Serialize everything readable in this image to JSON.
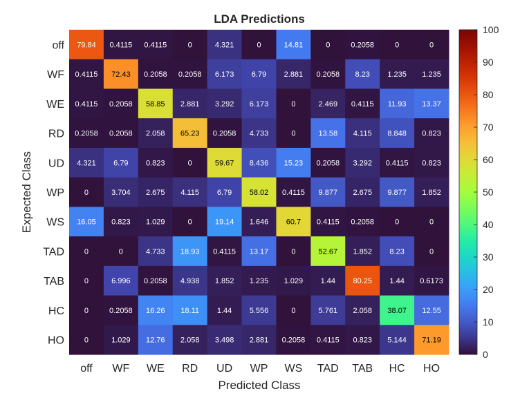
{
  "chart_data": {
    "type": "heatmap",
    "title": "LDA Predictions",
    "xlabel": "Predicted Class",
    "ylabel": "Expected Class",
    "x_categories": [
      "off",
      "WF",
      "WE",
      "RD",
      "UD",
      "WP",
      "WS",
      "TAD",
      "TAB",
      "HC",
      "HO"
    ],
    "y_categories": [
      "off",
      "WF",
      "WE",
      "RD",
      "UD",
      "WP",
      "WS",
      "TAD",
      "TAB",
      "HC",
      "HO"
    ],
    "values": [
      [
        "79.84",
        "0.4115",
        "0.4115",
        "0",
        "4.321",
        "0",
        "14.81",
        "0",
        "0.2058",
        "0",
        "0"
      ],
      [
        "0.4115",
        "72.43",
        "0.2058",
        "0.2058",
        "6.173",
        "6.79",
        "2.881",
        "0.2058",
        "8.23",
        "1.235",
        "1.235"
      ],
      [
        "0.4115",
        "0.2058",
        "58.85",
        "2.881",
        "3.292",
        "6.173",
        "0",
        "2.469",
        "0.4115",
        "11.93",
        "13.37"
      ],
      [
        "0.2058",
        "0.2058",
        "2.058",
        "65.23",
        "0.2058",
        "4.733",
        "0",
        "13.58",
        "4.115",
        "8.848",
        "0.823"
      ],
      [
        "4.321",
        "6.79",
        "0.823",
        "0",
        "59.67",
        "8.436",
        "15.23",
        "0.2058",
        "3.292",
        "0.4115",
        "0.823"
      ],
      [
        "0",
        "3.704",
        "2.675",
        "4.115",
        "6.79",
        "58.02",
        "0.4115",
        "9.877",
        "2.675",
        "9.877",
        "1.852"
      ],
      [
        "16.05",
        "0.823",
        "1.029",
        "0",
        "19.14",
        "1.646",
        "60.7",
        "0.4115",
        "0.2058",
        "0",
        "0"
      ],
      [
        "0",
        "0",
        "4.733",
        "18.93",
        "0.4115",
        "13.17",
        "0",
        "52.67",
        "1.852",
        "8.23",
        "0"
      ],
      [
        "0",
        "6.996",
        "0.2058",
        "4.938",
        "1.852",
        "1.235",
        "1.029",
        "1.44",
        "80.25",
        "1.44",
        "0.6173"
      ],
      [
        "0",
        "0.2058",
        "16.26",
        "18.11",
        "1.44",
        "5.556",
        "0",
        "5.761",
        "2.058",
        "38.07",
        "12.55"
      ],
      [
        "0",
        "1.029",
        "12.76",
        "2.058",
        "3.498",
        "2.881",
        "0.2058",
        "0.4115",
        "0.823",
        "5.144",
        "71.19"
      ]
    ],
    "colorbar": {
      "colormap": "turbo",
      "limits": [
        0,
        100
      ],
      "ticks": [
        "0",
        "10",
        "20",
        "30",
        "40",
        "50",
        "60",
        "70",
        "80",
        "90",
        "100"
      ]
    },
    "grid": false,
    "legend": "none"
  }
}
